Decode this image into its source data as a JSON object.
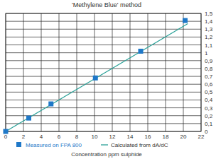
{
  "chart_data": {
    "type": "scatter",
    "title": "'Methylene Blue' method",
    "x_label": "Concentration ppm sulphide",
    "xlim": [
      0,
      22
    ],
    "xticks": [
      0,
      2,
      4,
      6,
      8,
      10,
      12,
      14,
      16,
      18,
      20,
      22
    ],
    "ylim": [
      0,
      1.5
    ],
    "yticks": [
      0,
      {
        "value": 0.1,
        "label": "0,1"
      },
      {
        "value": 0.2,
        "label": "0,2"
      },
      {
        "value": 0.3,
        "label": "0,3"
      },
      {
        "value": 0.4,
        "label": "0,4"
      },
      {
        "value": 0.5,
        "label": "0,5"
      },
      {
        "value": 0.6,
        "label": "0,6"
      },
      {
        "value": 0.7,
        "label": "0,7"
      },
      {
        "value": 0.8,
        "label": "0,8"
      },
      {
        "value": 0.9,
        "label": "0,9"
      },
      1,
      {
        "value": 1.1,
        "label": "1,1"
      },
      {
        "value": 1.2,
        "label": "1,2"
      },
      {
        "value": 1.3,
        "label": "1,3"
      },
      {
        "value": 1.4,
        "label": "1,4"
      },
      {
        "value": 1.5,
        "label": "1,5"
      }
    ],
    "grid": true,
    "legend": "bottom",
    "series": [
      {
        "name": "Measured on FPA 800",
        "type": "scatter",
        "marker": "square",
        "color": "#1f78c8",
        "x": [
          0,
          2.6,
          5.1,
          10.1,
          15.2,
          20.2
        ],
        "values": [
          0,
          0.17,
          0.35,
          0.68,
          1.02,
          1.41
        ]
      },
      {
        "name": "Calculated from dA/dC",
        "type": "line",
        "line_style": "solid",
        "color": "#2aa198",
        "x": [
          0,
          20.5
        ],
        "values": [
          0,
          1.37
        ]
      }
    ]
  }
}
